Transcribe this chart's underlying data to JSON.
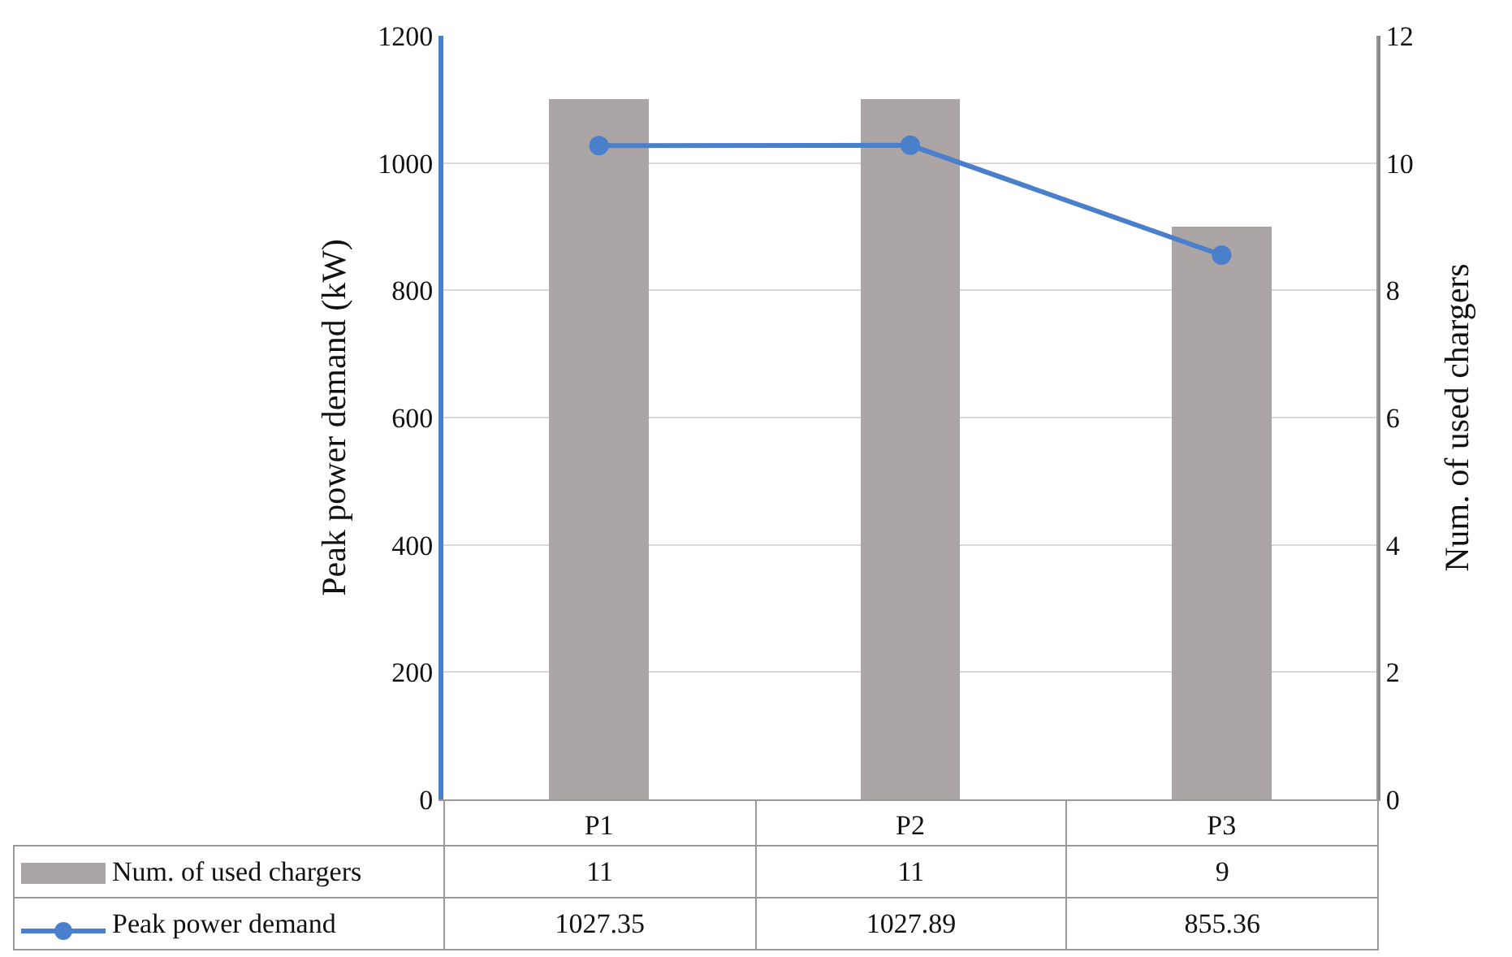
{
  "chart_data": {
    "type": "bar",
    "categories": [
      "P1",
      "P2",
      "P3"
    ],
    "series": [
      {
        "name": "Num. of used chargers",
        "axis": "y2",
        "color": "#aba5a5",
        "values": [
          11,
          11,
          9
        ]
      },
      {
        "name": "Peak power demand",
        "type": "line",
        "color": "#4a7fcc",
        "values": [
          1027.35,
          1027.89,
          855.36
        ]
      }
    ],
    "ylabel": "Peak power demand (kW)",
    "y2label": "Num. of used chargers",
    "ylim": [
      0,
      1200
    ],
    "yticks": [
      0,
      200,
      400,
      600,
      800,
      1000,
      1200
    ],
    "y2lim": [
      0,
      12
    ],
    "y2ticks": [
      0,
      2,
      4,
      6,
      8,
      10,
      12
    ],
    "grid": "y",
    "marker": "circle",
    "legend": "bottom",
    "data_labels": true
  }
}
